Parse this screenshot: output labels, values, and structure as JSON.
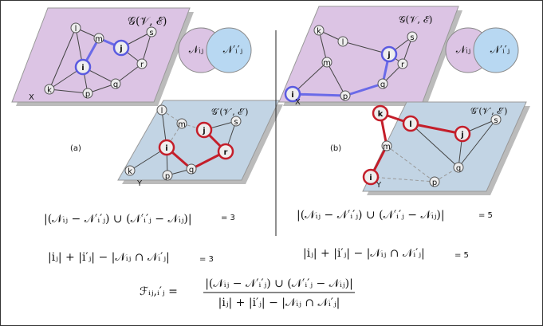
{
  "panels": [
    {
      "label": "(a)",
      "top": {
        "title": "𝒢(𝒱, ℰ)",
        "corner": "X",
        "nodes": [
          "l",
          "m",
          "j",
          "s",
          "i",
          "r",
          "k",
          "p",
          "q"
        ]
      },
      "venn": [
        "𝒩ᵢⱼ",
        "𝒩′ᵢ′ⱼ"
      ],
      "bottom": {
        "title": "𝒢′(𝒱′, ℰ′)",
        "corner": "Y",
        "nodes": [
          "l",
          "m",
          "j",
          "s",
          "i",
          "r",
          "k",
          "p",
          "q"
        ]
      },
      "formulas": [
        {
          "text": "|(𝒩ᵢⱼ − 𝒩′ᵢ′ⱼ) ∪ (𝒩′ᵢ′ⱼ − 𝒩ᵢⱼ)|",
          "result": "= 3"
        },
        {
          "text": "|iⱼ| + |i′ⱼ| − |𝒩ᵢⱼ ∩ 𝒩ᵢ′ⱼ|",
          "result": "= 3"
        }
      ]
    },
    {
      "label": "(b)",
      "top": {
        "title": "𝒢(𝒱, ℰ)",
        "corner": "X",
        "nodes": [
          "k",
          "l",
          "s",
          "j",
          "m",
          "r",
          "i",
          "p",
          "q"
        ]
      },
      "venn": [
        "𝒩ᵢⱼ",
        "𝒩′ᵢ′ⱼ"
      ],
      "bottom": {
        "title": "𝒢′(𝒱′, ℰ′)",
        "corner": "Y",
        "nodes": [
          "k",
          "l",
          "j",
          "s",
          "m",
          "q",
          "p",
          "i"
        ]
      },
      "formulas": [
        {
          "text": "|(𝒩ᵢⱼ − 𝒩′ᵢ′ⱼ) ∪ (𝒩′ᵢ′ⱼ − 𝒩ᵢⱼ)|",
          "result": "= 5"
        },
        {
          "text": "|iⱼ| + |i′ⱼ| − |𝒩ᵢⱼ ∩ 𝒩ᵢ′ⱼ|",
          "result": "= 5"
        }
      ]
    }
  ],
  "final": {
    "lhs": "ℱᵢⱼ,ᵢ′ⱼ =",
    "numerator": "|(𝒩ᵢⱼ − 𝒩′ᵢ′ⱼ) ∪ (𝒩′ᵢ′ⱼ − 𝒩ᵢⱼ)|",
    "denominator": "|iⱼ| + |i′ⱼ| − |𝒩ᵢⱼ ∩ 𝒩ᵢ′ⱼ|"
  }
}
